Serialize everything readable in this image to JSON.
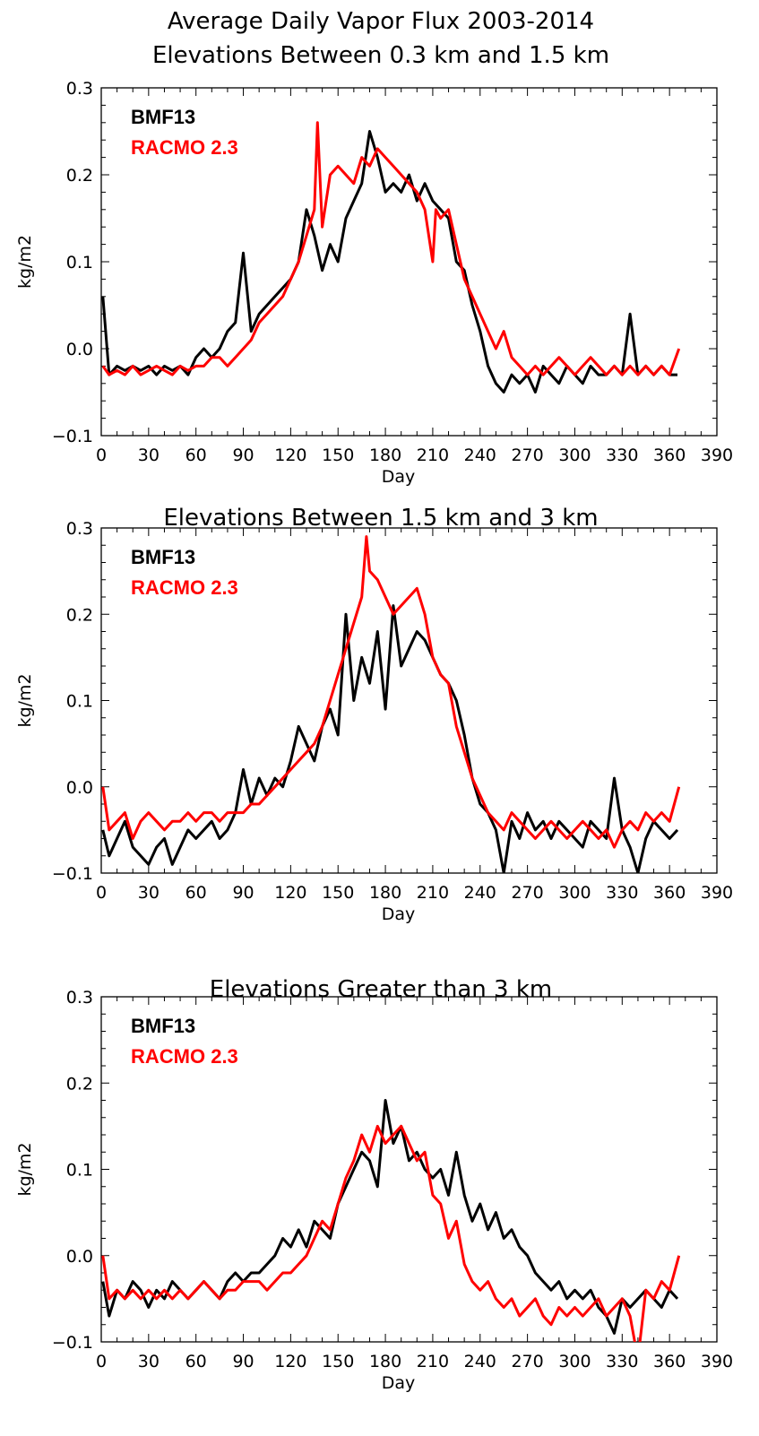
{
  "figure": {
    "title_line1": "Average Daily Vapor Flux 2003-2014",
    "title_line2": "Elevations Between 0.3 km and 1.5 km"
  },
  "colors": {
    "bmf13": "#000000",
    "racmo": "#ff0000"
  },
  "chart_data": [
    {
      "type": "line",
      "title": "Average Daily Vapor Flux 2003-2014 Elevations Between 0.3 km and 1.5 km",
      "xlabel": "Day",
      "ylabel": "kg/m2",
      "xlim": [
        0,
        390
      ],
      "ylim": [
        -0.1,
        0.3
      ],
      "xticks": [
        "0",
        "30",
        "60",
        "90",
        "120",
        "150",
        "180",
        "210",
        "240",
        "270",
        "300",
        "330",
        "360",
        "390"
      ],
      "yticks": [
        "-0.1",
        "0.0",
        "0.1",
        "0.2",
        "0.3"
      ],
      "legend": "top-left",
      "series": [
        {
          "name": "BMF13",
          "color": "#000000",
          "x": [
            1,
            5,
            10,
            15,
            20,
            25,
            30,
            35,
            40,
            45,
            50,
            55,
            60,
            65,
            70,
            75,
            80,
            85,
            90,
            95,
            100,
            105,
            110,
            115,
            120,
            125,
            130,
            135,
            140,
            145,
            150,
            155,
            160,
            165,
            170,
            175,
            180,
            185,
            190,
            195,
            200,
            205,
            210,
            215,
            220,
            225,
            230,
            235,
            240,
            245,
            250,
            255,
            260,
            265,
            270,
            275,
            280,
            285,
            290,
            295,
            300,
            305,
            310,
            315,
            320,
            325,
            330,
            335,
            340,
            345,
            350,
            355,
            360,
            365
          ],
          "y": [
            0.06,
            -0.03,
            -0.02,
            -0.025,
            -0.02,
            -0.025,
            -0.02,
            -0.03,
            -0.02,
            -0.025,
            -0.02,
            -0.03,
            -0.01,
            0.0,
            -0.01,
            0.0,
            0.02,
            0.03,
            0.11,
            0.02,
            0.04,
            0.05,
            0.06,
            0.07,
            0.08,
            0.1,
            0.16,
            0.13,
            0.09,
            0.12,
            0.1,
            0.15,
            0.17,
            0.19,
            0.25,
            0.22,
            0.18,
            0.19,
            0.18,
            0.2,
            0.17,
            0.19,
            0.17,
            0.16,
            0.15,
            0.1,
            0.09,
            0.05,
            0.02,
            -0.02,
            -0.04,
            -0.05,
            -0.03,
            -0.04,
            -0.03,
            -0.05,
            -0.02,
            -0.03,
            -0.04,
            -0.02,
            -0.03,
            -0.04,
            -0.02,
            -0.03,
            -0.03,
            -0.02,
            -0.03,
            0.04,
            -0.03,
            -0.02,
            -0.03,
            -0.02,
            -0.03,
            -0.03
          ]
        },
        {
          "name": "RACMO 2.3",
          "color": "#ff0000",
          "x": [
            1,
            5,
            10,
            15,
            20,
            25,
            30,
            35,
            40,
            45,
            50,
            55,
            60,
            65,
            70,
            75,
            80,
            85,
            90,
            95,
            100,
            105,
            110,
            115,
            120,
            125,
            130,
            135,
            137,
            140,
            145,
            150,
            155,
            160,
            165,
            170,
            175,
            180,
            185,
            190,
            195,
            200,
            205,
            210,
            212,
            215,
            220,
            225,
            230,
            235,
            240,
            245,
            250,
            255,
            260,
            265,
            270,
            275,
            280,
            285,
            290,
            295,
            300,
            305,
            310,
            315,
            320,
            325,
            330,
            335,
            340,
            345,
            350,
            355,
            360,
            366
          ],
          "y": [
            -0.02,
            -0.03,
            -0.025,
            -0.03,
            -0.02,
            -0.03,
            -0.025,
            -0.02,
            -0.025,
            -0.03,
            -0.02,
            -0.025,
            -0.02,
            -0.02,
            -0.01,
            -0.01,
            -0.02,
            -0.01,
            0.0,
            0.01,
            0.03,
            0.04,
            0.05,
            0.06,
            0.08,
            0.1,
            0.13,
            0.16,
            0.26,
            0.14,
            0.2,
            0.21,
            0.2,
            0.19,
            0.22,
            0.21,
            0.23,
            0.22,
            0.21,
            0.2,
            0.19,
            0.18,
            0.16,
            0.1,
            0.16,
            0.15,
            0.16,
            0.12,
            0.08,
            0.06,
            0.04,
            0.02,
            0.0,
            0.02,
            -0.01,
            -0.02,
            -0.03,
            -0.02,
            -0.03,
            -0.02,
            -0.01,
            -0.02,
            -0.03,
            -0.02,
            -0.01,
            -0.02,
            -0.03,
            -0.02,
            -0.03,
            -0.02,
            -0.03,
            -0.02,
            -0.03,
            -0.02,
            -0.03,
            0.0
          ]
        }
      ]
    },
    {
      "type": "line",
      "title": "Elevations Between 1.5 km and 3 km",
      "xlabel": "Day",
      "ylabel": "kg/m2",
      "xlim": [
        0,
        390
      ],
      "ylim": [
        -0.1,
        0.3
      ],
      "xticks": [
        "0",
        "30",
        "60",
        "90",
        "120",
        "150",
        "180",
        "210",
        "240",
        "270",
        "300",
        "330",
        "360",
        "390"
      ],
      "yticks": [
        "-0.1",
        "0.0",
        "0.1",
        "0.2",
        "0.3"
      ],
      "legend": "top-left",
      "series": [
        {
          "name": "BMF13",
          "color": "#000000",
          "x": [
            1,
            5,
            10,
            15,
            20,
            25,
            30,
            35,
            40,
            45,
            50,
            55,
            60,
            65,
            70,
            75,
            80,
            85,
            90,
            95,
            100,
            105,
            110,
            115,
            120,
            125,
            130,
            135,
            140,
            145,
            150,
            155,
            160,
            165,
            170,
            175,
            180,
            185,
            190,
            195,
            200,
            205,
            210,
            215,
            220,
            225,
            230,
            235,
            240,
            245,
            250,
            255,
            260,
            265,
            270,
            275,
            280,
            285,
            290,
            295,
            300,
            305,
            310,
            315,
            320,
            325,
            330,
            335,
            340,
            345,
            350,
            355,
            360,
            365
          ],
          "y": [
            -0.05,
            -0.08,
            -0.06,
            -0.04,
            -0.07,
            -0.08,
            -0.09,
            -0.07,
            -0.06,
            -0.09,
            -0.07,
            -0.05,
            -0.06,
            -0.05,
            -0.04,
            -0.06,
            -0.05,
            -0.03,
            0.02,
            -0.02,
            0.01,
            -0.01,
            0.01,
            0.0,
            0.03,
            0.07,
            0.05,
            0.03,
            0.07,
            0.09,
            0.06,
            0.2,
            0.1,
            0.15,
            0.12,
            0.18,
            0.09,
            0.21,
            0.14,
            0.16,
            0.18,
            0.17,
            0.15,
            0.13,
            0.12,
            0.1,
            0.06,
            0.01,
            -0.02,
            -0.03,
            -0.05,
            -0.1,
            -0.04,
            -0.06,
            -0.03,
            -0.05,
            -0.04,
            -0.06,
            -0.04,
            -0.05,
            -0.06,
            -0.07,
            -0.04,
            -0.05,
            -0.06,
            0.01,
            -0.05,
            -0.07,
            -0.1,
            -0.06,
            -0.04,
            -0.05,
            -0.06,
            -0.05
          ]
        },
        {
          "name": "RACMO 2.3",
          "color": "#ff0000",
          "x": [
            1,
            5,
            10,
            15,
            20,
            25,
            30,
            35,
            40,
            45,
            50,
            55,
            60,
            65,
            70,
            75,
            80,
            85,
            90,
            95,
            100,
            105,
            110,
            115,
            120,
            125,
            130,
            135,
            140,
            145,
            150,
            155,
            160,
            165,
            168,
            170,
            175,
            180,
            185,
            190,
            195,
            200,
            205,
            210,
            215,
            220,
            225,
            230,
            235,
            240,
            245,
            250,
            255,
            260,
            265,
            270,
            275,
            280,
            285,
            290,
            295,
            300,
            305,
            310,
            315,
            320,
            325,
            330,
            335,
            340,
            345,
            350,
            355,
            360,
            366
          ],
          "y": [
            0.0,
            -0.05,
            -0.04,
            -0.03,
            -0.06,
            -0.04,
            -0.03,
            -0.04,
            -0.05,
            -0.04,
            -0.04,
            -0.03,
            -0.04,
            -0.03,
            -0.03,
            -0.04,
            -0.03,
            -0.03,
            -0.03,
            -0.02,
            -0.02,
            -0.01,
            0.0,
            0.01,
            0.02,
            0.03,
            0.04,
            0.05,
            0.07,
            0.1,
            0.13,
            0.16,
            0.19,
            0.22,
            0.29,
            0.25,
            0.24,
            0.22,
            0.2,
            0.21,
            0.22,
            0.23,
            0.2,
            0.15,
            0.13,
            0.12,
            0.07,
            0.04,
            0.01,
            -0.01,
            -0.03,
            -0.04,
            -0.05,
            -0.03,
            -0.04,
            -0.05,
            -0.06,
            -0.05,
            -0.04,
            -0.05,
            -0.06,
            -0.05,
            -0.04,
            -0.05,
            -0.06,
            -0.05,
            -0.07,
            -0.05,
            -0.04,
            -0.05,
            -0.03,
            -0.04,
            -0.03,
            -0.04,
            0.0
          ]
        }
      ]
    },
    {
      "type": "line",
      "title": "Elevations Greater than 3 km",
      "xlabel": "Day",
      "ylabel": "kg/m2",
      "xlim": [
        0,
        390
      ],
      "ylim": [
        -0.1,
        0.3
      ],
      "xticks": [
        "0",
        "30",
        "60",
        "90",
        "120",
        "150",
        "180",
        "210",
        "240",
        "270",
        "300",
        "330",
        "360",
        "390"
      ],
      "yticks": [
        "-0.1",
        "0.0",
        "0.1",
        "0.2",
        "0.3"
      ],
      "legend": "top-left",
      "series": [
        {
          "name": "BMF13",
          "color": "#000000",
          "x": [
            1,
            5,
            10,
            15,
            20,
            25,
            30,
            35,
            40,
            45,
            50,
            55,
            60,
            65,
            70,
            75,
            80,
            85,
            90,
            95,
            100,
            105,
            110,
            115,
            120,
            125,
            130,
            135,
            140,
            145,
            150,
            155,
            160,
            165,
            170,
            175,
            180,
            185,
            190,
            195,
            200,
            205,
            210,
            215,
            220,
            225,
            230,
            235,
            240,
            245,
            250,
            255,
            260,
            265,
            270,
            275,
            280,
            285,
            290,
            295,
            300,
            305,
            310,
            315,
            320,
            325,
            330,
            335,
            340,
            345,
            350,
            355,
            360,
            365
          ],
          "y": [
            -0.03,
            -0.07,
            -0.04,
            -0.05,
            -0.03,
            -0.04,
            -0.06,
            -0.04,
            -0.05,
            -0.03,
            -0.04,
            -0.05,
            -0.04,
            -0.03,
            -0.04,
            -0.05,
            -0.03,
            -0.02,
            -0.03,
            -0.02,
            -0.02,
            -0.01,
            0.0,
            0.02,
            0.01,
            0.03,
            0.01,
            0.04,
            0.03,
            0.02,
            0.06,
            0.08,
            0.1,
            0.12,
            0.11,
            0.08,
            0.18,
            0.13,
            0.15,
            0.11,
            0.12,
            0.1,
            0.09,
            0.1,
            0.07,
            0.12,
            0.07,
            0.04,
            0.06,
            0.03,
            0.05,
            0.02,
            0.03,
            0.01,
            0.0,
            -0.02,
            -0.03,
            -0.04,
            -0.03,
            -0.05,
            -0.04,
            -0.05,
            -0.04,
            -0.06,
            -0.07,
            -0.09,
            -0.05,
            -0.06,
            -0.05,
            -0.04,
            -0.05,
            -0.06,
            -0.04,
            -0.05
          ]
        },
        {
          "name": "RACMO 2.3",
          "color": "#ff0000",
          "x": [
            1,
            5,
            10,
            15,
            20,
            25,
            30,
            35,
            40,
            45,
            50,
            55,
            60,
            65,
            70,
            75,
            80,
            85,
            90,
            95,
            100,
            105,
            110,
            115,
            120,
            125,
            130,
            135,
            140,
            145,
            150,
            155,
            160,
            165,
            170,
            175,
            180,
            185,
            190,
            195,
            200,
            205,
            210,
            215,
            220,
            225,
            230,
            235,
            240,
            245,
            250,
            255,
            260,
            265,
            270,
            275,
            280,
            285,
            290,
            295,
            300,
            305,
            310,
            315,
            320,
            325,
            330,
            335,
            340,
            345,
            350,
            355,
            360,
            366
          ],
          "y": [
            0.0,
            -0.05,
            -0.04,
            -0.05,
            -0.04,
            -0.05,
            -0.04,
            -0.05,
            -0.04,
            -0.05,
            -0.04,
            -0.05,
            -0.04,
            -0.03,
            -0.04,
            -0.05,
            -0.04,
            -0.04,
            -0.03,
            -0.03,
            -0.03,
            -0.04,
            -0.03,
            -0.02,
            -0.02,
            -0.01,
            0.0,
            0.02,
            0.04,
            0.03,
            0.06,
            0.09,
            0.11,
            0.14,
            0.12,
            0.15,
            0.13,
            0.14,
            0.15,
            0.13,
            0.11,
            0.12,
            0.07,
            0.06,
            0.02,
            0.04,
            -0.01,
            -0.03,
            -0.04,
            -0.03,
            -0.05,
            -0.06,
            -0.05,
            -0.07,
            -0.06,
            -0.05,
            -0.07,
            -0.08,
            -0.06,
            -0.07,
            -0.06,
            -0.07,
            -0.06,
            -0.05,
            -0.07,
            -0.06,
            -0.05,
            -0.07,
            -0.12,
            -0.04,
            -0.05,
            -0.03,
            -0.04,
            0.0
          ]
        }
      ]
    }
  ]
}
